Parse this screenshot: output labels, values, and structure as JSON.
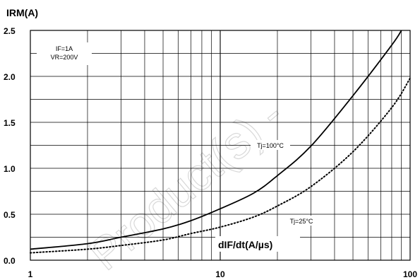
{
  "chart_data": {
    "type": "line",
    "ylabel": "IRM(A)",
    "xlabel": "dIF/dt(A/µs)",
    "xscale": "log",
    "xlim": [
      1,
      100
    ],
    "ylim": [
      0,
      2.5
    ],
    "x_ticks": [
      "1",
      "10",
      "100"
    ],
    "y_ticks": [
      "0.0",
      "0.5",
      "1.0",
      "1.5",
      "2.0",
      "2.5"
    ],
    "y_tick_values": [
      0,
      0.5,
      1.0,
      1.5,
      2.0,
      2.5
    ],
    "grid": true,
    "conditions": [
      "IF=1A",
      "VR=200V"
    ],
    "series": [
      {
        "name": "Tj=100°C",
        "style": "solid",
        "points": [
          [
            1,
            0.12
          ],
          [
            2,
            0.18
          ],
          [
            3,
            0.25
          ],
          [
            5,
            0.34
          ],
          [
            7,
            0.43
          ],
          [
            10,
            0.56
          ],
          [
            15,
            0.73
          ],
          [
            20,
            0.92
          ],
          [
            30,
            1.24
          ],
          [
            50,
            1.79
          ],
          [
            80,
            2.34
          ],
          [
            90,
            2.5
          ]
        ]
      },
      {
        "name": "Tj=25°C",
        "style": "dotted",
        "points": [
          [
            1,
            0.08
          ],
          [
            2,
            0.12
          ],
          [
            3,
            0.16
          ],
          [
            5,
            0.22
          ],
          [
            7,
            0.29
          ],
          [
            10,
            0.36
          ],
          [
            15,
            0.47
          ],
          [
            20,
            0.59
          ],
          [
            30,
            0.8
          ],
          [
            50,
            1.18
          ],
          [
            80,
            1.66
          ],
          [
            100,
            1.98
          ]
        ]
      }
    ],
    "watermark": "Product(s) -"
  }
}
